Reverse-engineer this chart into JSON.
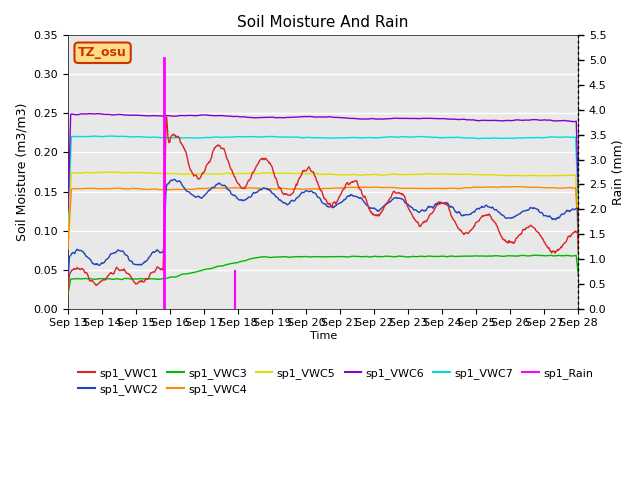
{
  "title": "Soil Moisture And Rain",
  "xlabel": "Time",
  "ylabel_left": "Soil Moisture (m3/m3)",
  "ylabel_right": "Rain (mm)",
  "ylim_left": [
    0.0,
    0.35
  ],
  "ylim_right": [
    0.0,
    5.5
  ],
  "yticks_left": [
    0.0,
    0.05,
    0.1,
    0.15,
    0.2,
    0.25,
    0.3,
    0.35
  ],
  "yticks_right": [
    0.0,
    0.5,
    1.0,
    1.5,
    2.0,
    2.5,
    3.0,
    3.5,
    4.0,
    4.5,
    5.0,
    5.5
  ],
  "x_labels": [
    "Sep 13",
    "Sep 14",
    "Sep 15",
    "Sep 16",
    "Sep 17",
    "Sep 18",
    "Sep 19",
    "Sep 20",
    "Sep 21",
    "Sep 22",
    "Sep 23",
    "Sep 24",
    "Sep 25",
    "Sep 26",
    "Sep 27",
    "Sep 28"
  ],
  "background_color": "#e8e8e8",
  "plot_bg": "#e8e8e8",
  "box_label": "TZ_osu",
  "box_color": "#ffdd88",
  "box_border": "#cc3300",
  "colors": {
    "VWC1": "#dd2222",
    "VWC2": "#2244bb",
    "VWC3": "#00bb00",
    "VWC4": "#ff8800",
    "VWC5": "#dddd00",
    "VWC6": "#8800cc",
    "VWC7": "#00dddd",
    "Rain": "#ff00ff"
  },
  "rain_day1": 3.0,
  "rain_day2": 5.25,
  "rain_val1": 5.05,
  "rain_val2": 0.75,
  "n_days": 16
}
